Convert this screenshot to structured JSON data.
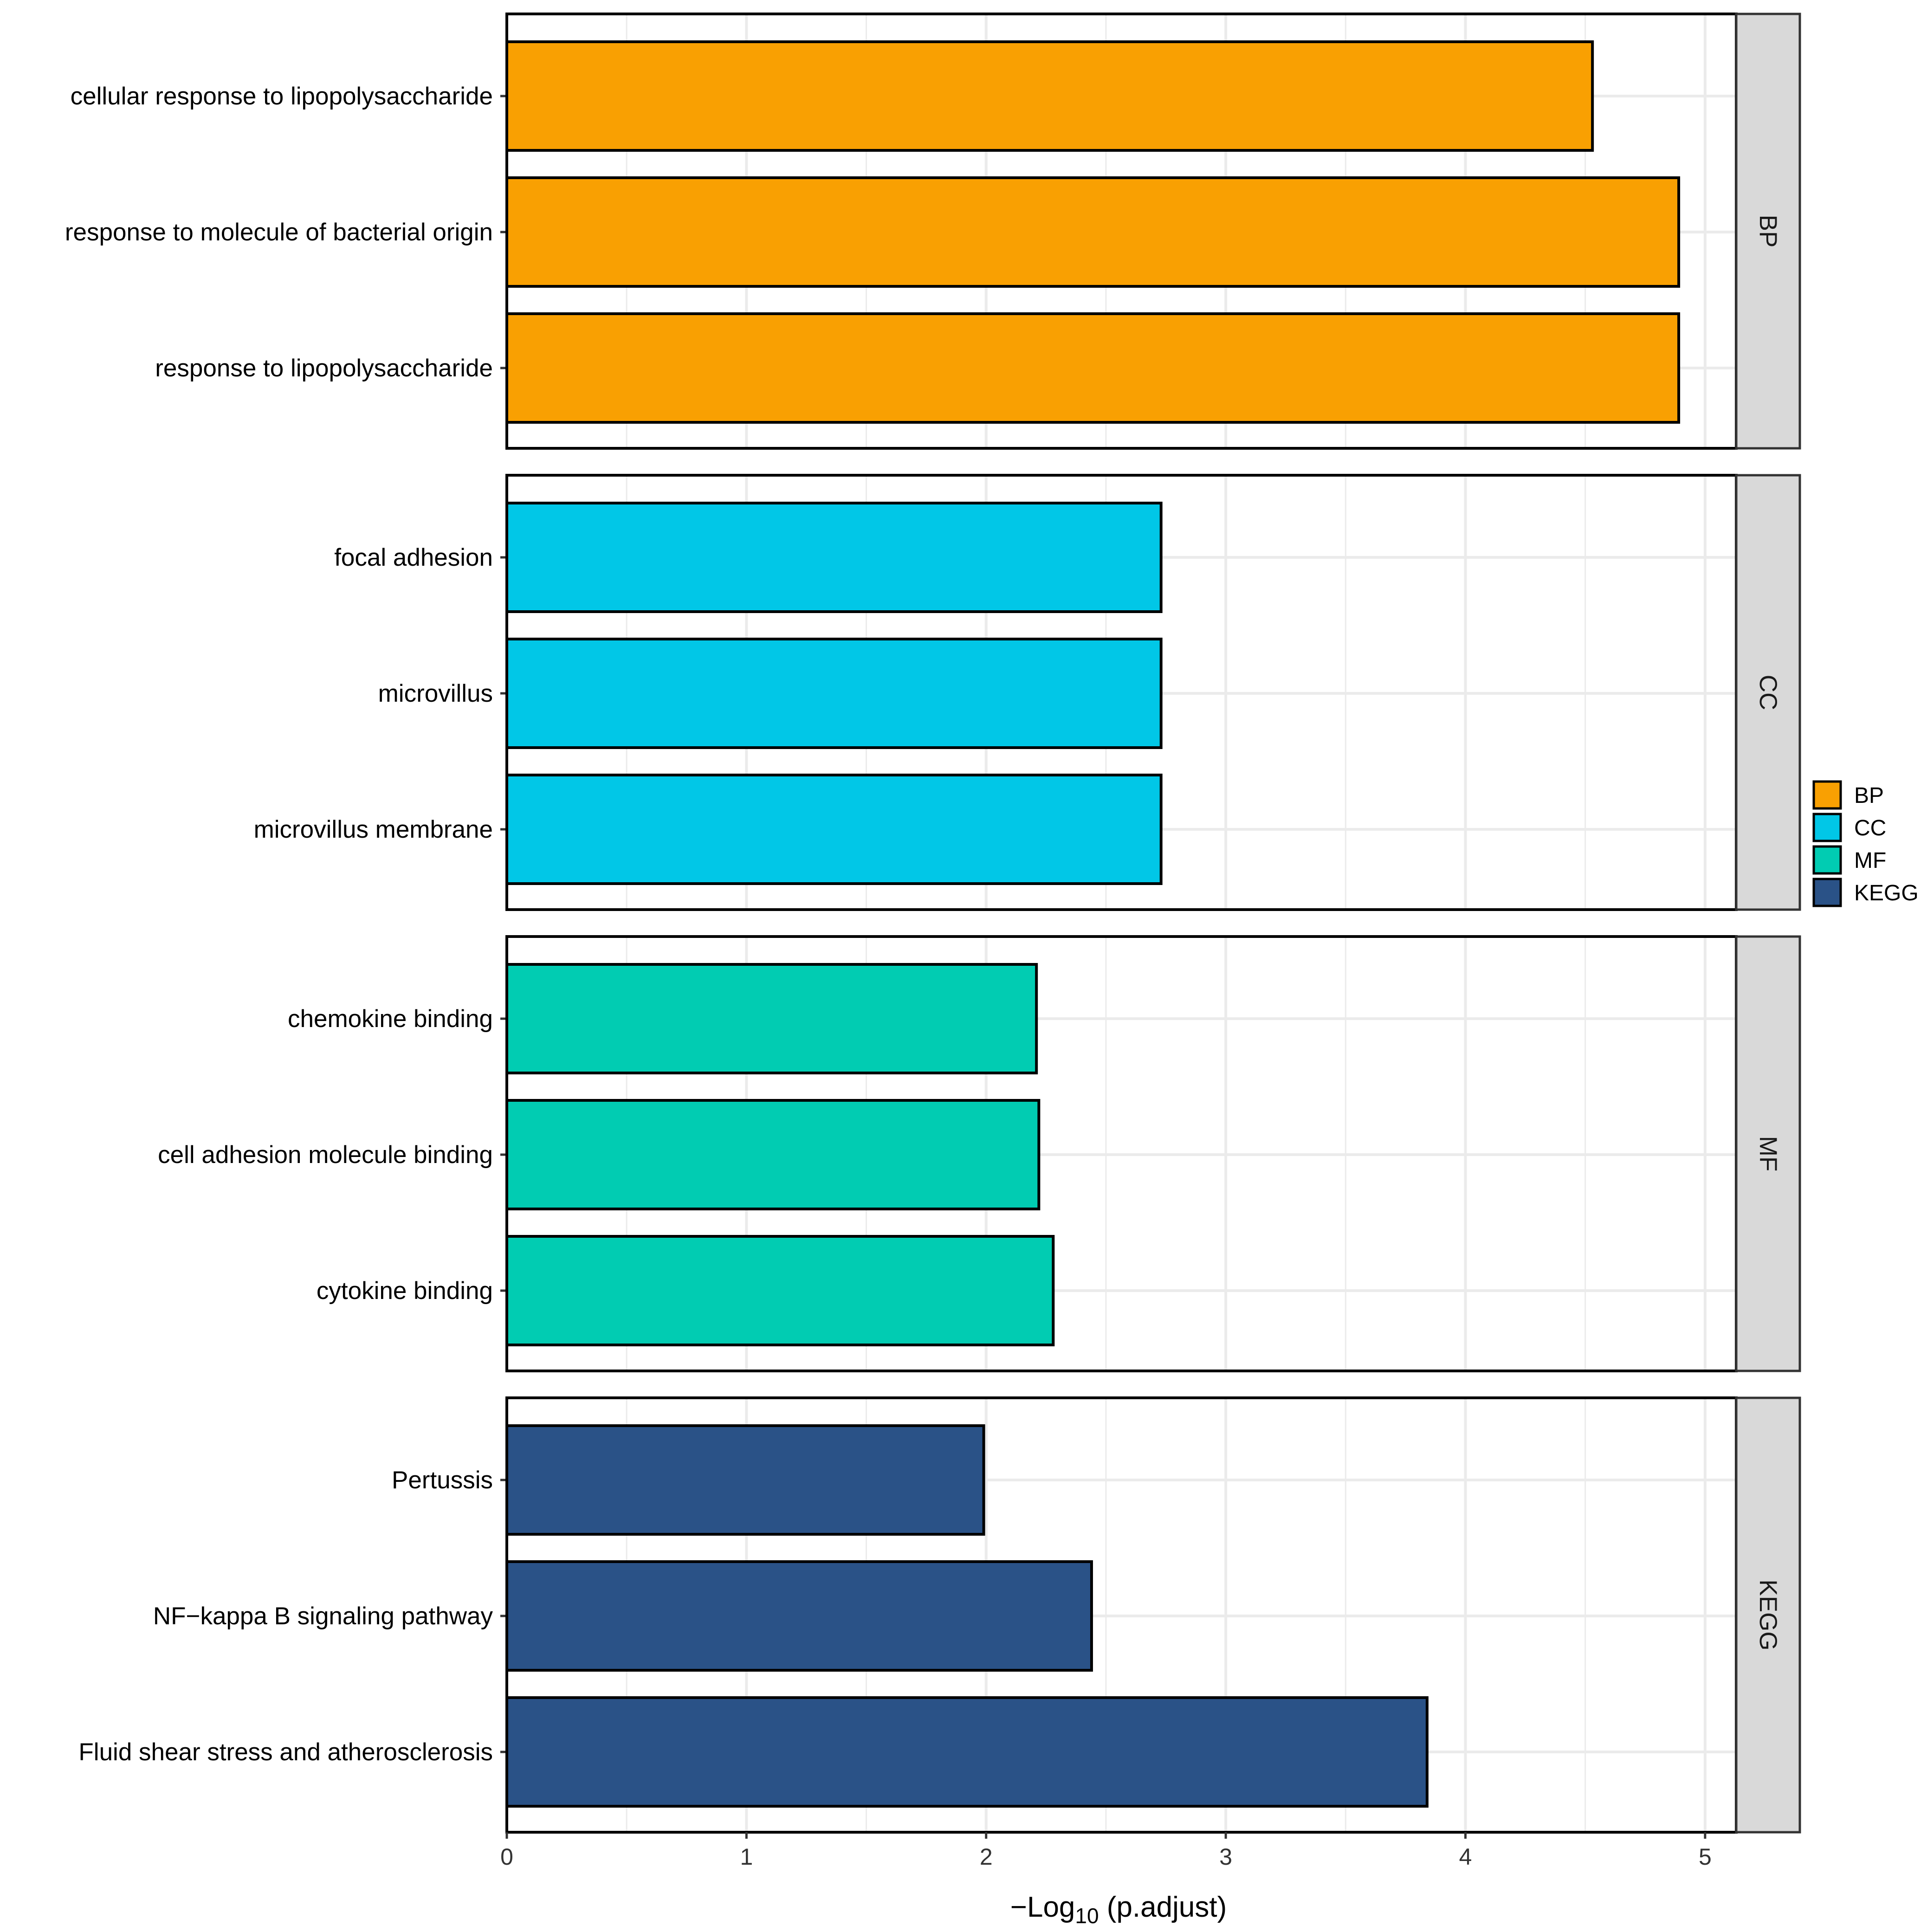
{
  "chart_data": {
    "type": "bar",
    "orientation": "horizontal",
    "xlabel": "−Log10 (p.adjust)",
    "xlabel_main": "−Log",
    "xlabel_sub": "10",
    "xlabel_tail": " (p.adjust)",
    "xlim": [
      0,
      5.13
    ],
    "xticks": [
      "0",
      "1",
      "2",
      "3",
      "4",
      "5"
    ],
    "grid": true,
    "legend_position": "right",
    "legend": [
      {
        "name": "BP",
        "color": "#F9A002"
      },
      {
        "name": "CC",
        "color": "#01C7E7"
      },
      {
        "name": "MF",
        "color": "#01CCB2"
      },
      {
        "name": "KEGG",
        "color": "#2A5287"
      }
    ],
    "panels": [
      {
        "strip": "BP",
        "color": "#F9A002",
        "bars": [
          {
            "label": "cellular response to lipopolysaccharide",
            "value": 4.53
          },
          {
            "label": "response to molecule of bacterial origin",
            "value": 4.89
          },
          {
            "label": "response to lipopolysaccharide",
            "value": 4.89
          }
        ]
      },
      {
        "strip": "CC",
        "color": "#01C7E7",
        "bars": [
          {
            "label": "focal adhesion",
            "value": 2.73
          },
          {
            "label": "microvillus",
            "value": 2.73
          },
          {
            "label": "microvillus membrane",
            "value": 2.73
          }
        ]
      },
      {
        "strip": "MF",
        "color": "#01CCB2",
        "bars": [
          {
            "label": "chemokine binding",
            "value": 2.21
          },
          {
            "label": "cell adhesion molecule binding",
            "value": 2.22
          },
          {
            "label": "cytokine binding",
            "value": 2.28
          }
        ]
      },
      {
        "strip": "KEGG",
        "color": "#2A5287",
        "bars": [
          {
            "label": "Pertussis",
            "value": 1.99
          },
          {
            "label": "NF−kappa B signaling pathway",
            "value": 2.44
          },
          {
            "label": "Fluid shear stress and atherosclerosis",
            "value": 3.84
          }
        ]
      }
    ]
  }
}
